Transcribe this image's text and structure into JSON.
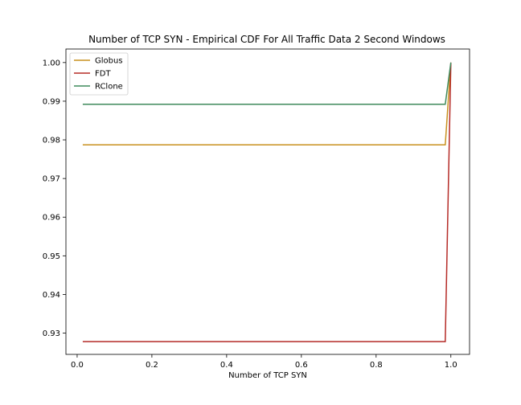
{
  "chart_data": {
    "type": "line",
    "title": "Number of TCP SYN - Empirical CDF For All Traffic Data 2 Second Windows",
    "xlabel": "Number of TCP SYN",
    "ylabel": "",
    "xlim": [
      -0.03,
      1.05
    ],
    "ylim": [
      0.9245,
      1.0035
    ],
    "xticks": [
      0.0,
      0.2,
      0.4,
      0.6,
      0.8,
      1.0
    ],
    "xtick_labels": [
      "0.0",
      "0.2",
      "0.4",
      "0.6",
      "0.8",
      "1.0"
    ],
    "yticks": [
      0.93,
      0.94,
      0.95,
      0.96,
      0.97,
      0.98,
      0.99,
      1.0
    ],
    "ytick_labels": [
      "0.93",
      "0.94",
      "0.95",
      "0.96",
      "0.97",
      "0.98",
      "0.99",
      "1.00"
    ],
    "grid": false,
    "legend_position": "top-left",
    "series": [
      {
        "name": "Globus",
        "color": "#c8901e",
        "x": [
          0.015,
          0.985,
          1.0
        ],
        "y": [
          0.9787,
          0.9787,
          1.0
        ]
      },
      {
        "name": "FDT",
        "color": "#b52b27",
        "x": [
          0.015,
          0.985,
          1.0
        ],
        "y": [
          0.9278,
          0.9278,
          1.0
        ]
      },
      {
        "name": "RClone",
        "color": "#3f8a5c",
        "x": [
          0.015,
          0.985,
          1.0
        ],
        "y": [
          0.9892,
          0.9892,
          1.0
        ]
      }
    ]
  }
}
